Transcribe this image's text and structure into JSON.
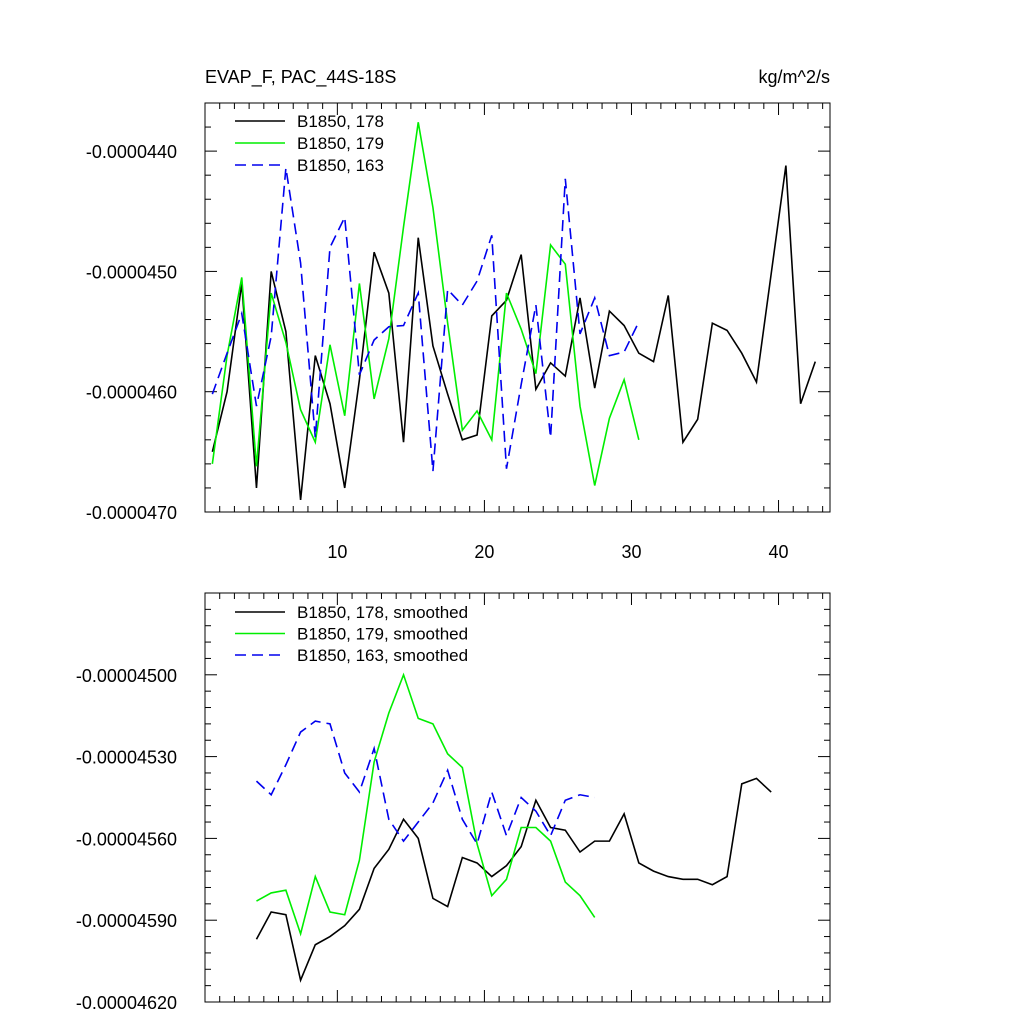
{
  "chart_data": [
    {
      "type": "line",
      "title": "EVAP_F, PAC_44S-18S",
      "units": "kg/m^2/s",
      "xlim": [
        1,
        43.5
      ],
      "ylim": [
        -4.7e-05,
        -4.36e-05
      ],
      "x_major_ticks": [
        10,
        20,
        30,
        40
      ],
      "x_tick_labels": [
        "10",
        "20",
        "30",
        "40"
      ],
      "y_major_ticks": [
        -4.7e-05,
        -4.6e-05,
        -4.5e-05,
        -4.4e-05
      ],
      "y_tick_labels": [
        "-0.0000470",
        "-0.0000460",
        "-0.0000450",
        "-0.0000440"
      ],
      "grid": false,
      "legend_position": "top-left",
      "series": [
        {
          "name": "B1850, 178",
          "color": "#000000",
          "dash": "solid",
          "x": [
            1.5,
            2.5,
            3.5,
            4.5,
            5.5,
            6.5,
            7.5,
            8.5,
            9.5,
            10.5,
            11.5,
            12.5,
            13.5,
            14.5,
            15.5,
            16.5,
            17.5,
            18.5,
            19.5,
            20.5,
            21.5,
            22.5,
            23.5,
            24.5,
            25.5,
            26.5,
            27.5,
            28.5,
            29.5,
            30.5,
            31.5,
            32.5,
            33.5,
            34.5,
            35.5,
            36.5,
            37.5,
            38.5,
            39.5,
            40.5,
            41.5,
            42.5
          ],
          "y": [
            -4.65e-05,
            -4.6e-05,
            -4.51e-05,
            -4.68e-05,
            -4.5e-05,
            -4.55e-05,
            -4.69e-05,
            -4.57e-05,
            -4.61e-05,
            -4.68e-05,
            -4.59e-05,
            -4.484e-05,
            -4.518e-05,
            -4.642e-05,
            -4.472e-05,
            -4.562e-05,
            -4.602e-05,
            -4.64e-05,
            -4.636e-05,
            -4.537e-05,
            -4.524e-05,
            -4.486e-05,
            -4.598e-05,
            -4.576e-05,
            -4.587e-05,
            -4.522e-05,
            -4.597e-05,
            -4.533e-05,
            -4.545e-05,
            -4.568e-05,
            -4.575e-05,
            -4.52e-05,
            -4.642e-05,
            -4.623e-05,
            -4.543e-05,
            -4.549e-05,
            -4.568e-05,
            -4.592e-05,
            -4.502e-05,
            -4.412e-05,
            -4.61e-05,
            -4.575e-05
          ]
        },
        {
          "name": "B1850, 179",
          "color": "#00ee00",
          "dash": "solid",
          "x": [
            1.5,
            2.5,
            3.5,
            4.5,
            5.5,
            6.5,
            7.5,
            8.5,
            9.5,
            10.5,
            11.5,
            12.5,
            13.5,
            14.5,
            15.5,
            16.5,
            17.5,
            18.5,
            19.5,
            20.5,
            21.5,
            22.5,
            23.5,
            24.5,
            25.5,
            26.5,
            27.5,
            28.5,
            29.5,
            30.5
          ],
          "y": [
            -4.66e-05,
            -4.57e-05,
            -4.505e-05,
            -4.662e-05,
            -4.518e-05,
            -4.559e-05,
            -4.615e-05,
            -4.642e-05,
            -4.561e-05,
            -4.62e-05,
            -4.51e-05,
            -4.606e-05,
            -4.556e-05,
            -4.463e-05,
            -4.376e-05,
            -4.447e-05,
            -4.543e-05,
            -4.632e-05,
            -4.616e-05,
            -4.64e-05,
            -4.518e-05,
            -4.548e-05,
            -4.585e-05,
            -4.478e-05,
            -4.494e-05,
            -4.612e-05,
            -4.678e-05,
            -4.622e-05,
            -4.59e-05,
            -4.64e-05
          ]
        },
        {
          "name": "B1850, 163",
          "color": "#0000ee",
          "dash": "dashed",
          "x": [
            1.5,
            2.5,
            3.5,
            4.5,
            5.5,
            6.5,
            7.5,
            8.5,
            9.5,
            10.5,
            11.5,
            12.5,
            13.5,
            14.5,
            15.5,
            16.5,
            17.5,
            18.5,
            19.5,
            20.5,
            21.5,
            22.5,
            23.5,
            24.5,
            25.5,
            26.5,
            27.5,
            28.5,
            29.5,
            30.5
          ],
          "y": [
            -4.602e-05,
            -4.568e-05,
            -4.535e-05,
            -4.612e-05,
            -4.554e-05,
            -4.414e-05,
            -4.493e-05,
            -4.638e-05,
            -4.48e-05,
            -4.455e-05,
            -4.586e-05,
            -4.557e-05,
            -4.546e-05,
            -4.545e-05,
            -4.518e-05,
            -4.666e-05,
            -4.515e-05,
            -4.528e-05,
            -4.508e-05,
            -4.47e-05,
            -4.664e-05,
            -4.594e-05,
            -4.528e-05,
            -4.638e-05,
            -4.423e-05,
            -4.552e-05,
            -4.522e-05,
            -4.57e-05,
            -4.567e-05,
            -4.542e-05
          ]
        }
      ]
    },
    {
      "type": "line",
      "xlim": [
        1,
        43.5
      ],
      "ylim": [
        -4.62e-05,
        -4.47e-05
      ],
      "x_major_ticks": [
        10,
        20,
        30,
        40
      ],
      "y_major_ticks": [
        -4.62e-05,
        -4.59e-05,
        -4.56e-05,
        -4.53e-05,
        -4.5e-05
      ],
      "y_tick_labels": [
        "-0.00004620",
        "-0.00004590",
        "-0.00004560",
        "-0.00004530",
        "-0.00004500"
      ],
      "grid": false,
      "legend_position": "top-left",
      "series": [
        {
          "name": "B1850, 178, smoothed",
          "color": "#000000",
          "dash": "solid",
          "x": [
            4.5,
            5.5,
            6.5,
            7.5,
            8.5,
            9.5,
            10.5,
            11.5,
            12.5,
            13.5,
            14.5,
            15.5,
            16.5,
            17.5,
            18.5,
            19.5,
            20.5,
            21.5,
            22.5,
            23.5,
            24.5,
            25.5,
            26.5,
            27.5,
            28.5,
            29.5,
            30.5,
            31.5,
            32.5,
            33.5,
            34.5,
            35.5,
            36.5,
            37.5,
            38.5,
            39.5
          ],
          "y": [
            -4.597e-05,
            -4.587e-05,
            -4.588e-05,
            -4.612e-05,
            -4.599e-05,
            -4.596e-05,
            -4.592e-05,
            -4.586e-05,
            -4.571e-05,
            -4.564e-05,
            -4.553e-05,
            -4.56e-05,
            -4.582e-05,
            -4.585e-05,
            -4.567e-05,
            -4.569e-05,
            -4.574e-05,
            -4.57e-05,
            -4.563e-05,
            -4.546e-05,
            -4.556e-05,
            -4.557e-05,
            -4.565e-05,
            -4.561e-05,
            -4.561e-05,
            -4.551e-05,
            -4.569e-05,
            -4.572e-05,
            -4.574e-05,
            -4.575e-05,
            -4.575e-05,
            -4.577e-05,
            -4.574e-05,
            -4.54e-05,
            -4.538e-05,
            -4.543e-05
          ]
        },
        {
          "name": "B1850, 179, smoothed",
          "color": "#00ee00",
          "dash": "solid",
          "x": [
            4.5,
            5.5,
            6.5,
            7.5,
            8.5,
            9.5,
            10.5,
            11.5,
            12.5,
            13.5,
            14.5,
            15.5,
            16.5,
            17.5,
            18.5,
            19.5,
            20.5,
            21.5,
            22.5,
            23.5,
            24.5,
            25.5,
            26.5,
            27.5
          ],
          "y": [
            -4.583e-05,
            -4.58e-05,
            -4.579e-05,
            -4.595e-05,
            -4.574e-05,
            -4.587e-05,
            -4.588e-05,
            -4.568e-05,
            -4.532e-05,
            -4.514e-05,
            -4.5e-05,
            -4.516e-05,
            -4.518e-05,
            -4.529e-05,
            -4.534e-05,
            -4.562e-05,
            -4.581e-05,
            -4.575e-05,
            -4.556e-05,
            -4.556e-05,
            -4.561e-05,
            -4.576e-05,
            -4.581e-05,
            -4.589e-05
          ]
        },
        {
          "name": "B1850, 163, smoothed",
          "color": "#0000ee",
          "dash": "dashed",
          "x": [
            4.5,
            5.5,
            6.5,
            7.5,
            8.5,
            9.5,
            10.5,
            11.5,
            12.5,
            13.5,
            14.5,
            15.5,
            16.5,
            17.5,
            18.5,
            19.5,
            20.5,
            21.5,
            22.5,
            23.5,
            24.5,
            25.5,
            26.5,
            27.5
          ],
          "y": [
            -4.539e-05,
            -4.544e-05,
            -4.533e-05,
            -4.521e-05,
            -4.517e-05,
            -4.518e-05,
            -4.536e-05,
            -4.543e-05,
            -4.527e-05,
            -4.553e-05,
            -4.561e-05,
            -4.554e-05,
            -4.547e-05,
            -4.535e-05,
            -4.553e-05,
            -4.562e-05,
            -4.543e-05,
            -4.559e-05,
            -4.545e-05,
            -4.55e-05,
            -4.559e-05,
            -4.546e-05,
            -4.544e-05,
            -4.545e-05
          ]
        }
      ]
    }
  ]
}
